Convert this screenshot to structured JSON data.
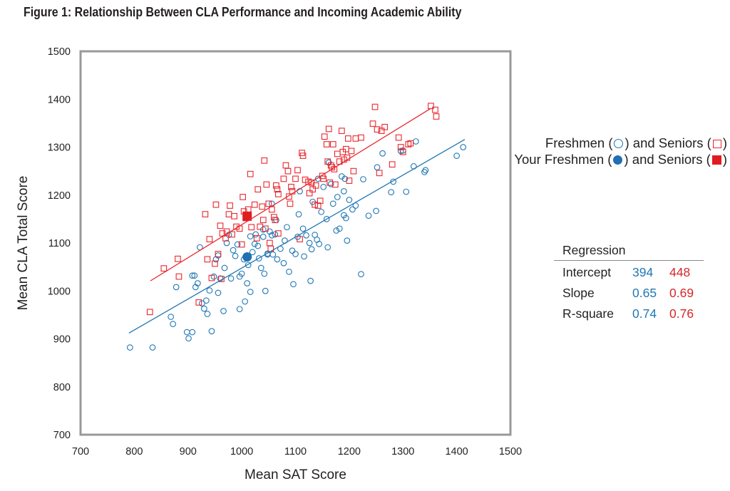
{
  "title": "Figure 1: Relationship Between CLA Performance and Incoming Academic Ability",
  "colors": {
    "freshmen": "#1f77b4",
    "seniors": "#e8282e",
    "frame": "#999999"
  },
  "legend": {
    "line1_text": "Freshmen (",
    "line1_mid": ") and Seniors (",
    "line1_end": ")",
    "line2_text": "Your Freshmen (",
    "line2_mid": ") and Seniors (",
    "line2_end": ")"
  },
  "regression": {
    "title": "Regression",
    "rows": [
      {
        "label": "Intercept",
        "freshmen": "394",
        "seniors": "448"
      },
      {
        "label": "Slope",
        "freshmen": "0.65",
        "seniors": "0.69"
      },
      {
        "label": "R-square",
        "freshmen": "0.74",
        "seniors": "0.76"
      }
    ]
  },
  "chart_data": {
    "type": "scatter",
    "title": "Figure 1: Relationship Between CLA Performance and Incoming Academic Ability",
    "xlabel": "Mean SAT Score",
    "ylabel": "Mean CLA Total Score",
    "xlim": [
      700,
      1500
    ],
    "ylim": [
      700,
      1500
    ],
    "xticks": [
      700,
      800,
      900,
      1000,
      1100,
      1200,
      1300,
      1400,
      1500
    ],
    "yticks": [
      700,
      800,
      900,
      1000,
      1100,
      1200,
      1300,
      1400,
      1500
    ],
    "grid": false,
    "legend_position": "right",
    "series": [
      {
        "name": "Freshmen",
        "marker": "open-circle",
        "regression_line": {
          "x": [
            790,
            1415
          ],
          "y": [
            912,
            1316
          ]
        },
        "points": [
          [
            792,
            882
          ],
          [
            834,
            882
          ],
          [
            868,
            946
          ],
          [
            872,
            931
          ],
          [
            898,
            914
          ],
          [
            901,
            901
          ],
          [
            908,
            914
          ],
          [
            878,
            1008
          ],
          [
            908,
            1032
          ],
          [
            912,
            1032
          ],
          [
            918,
            1016
          ],
          [
            914,
            1008
          ],
          [
            922,
            1091
          ],
          [
            926,
            974
          ],
          [
            930,
            963
          ],
          [
            934,
            980
          ],
          [
            936,
            952
          ],
          [
            940,
            1001
          ],
          [
            944,
            916
          ],
          [
            948,
            1030
          ],
          [
            952,
            1066
          ],
          [
            956,
            1074
          ],
          [
            956,
            996
          ],
          [
            960,
            1026
          ],
          [
            966,
            958
          ],
          [
            968,
            1048
          ],
          [
            972,
            1100
          ],
          [
            976,
            1117
          ],
          [
            980,
            1026
          ],
          [
            984,
            1085
          ],
          [
            988,
            1073
          ],
          [
            992,
            1097
          ],
          [
            996,
            962
          ],
          [
            996,
            1030
          ],
          [
            1000,
            1036
          ],
          [
            1004,
            1066
          ],
          [
            1006,
            978
          ],
          [
            1010,
            1016
          ],
          [
            1012,
            1054
          ],
          [
            1016,
            1114
          ],
          [
            1016,
            998
          ],
          [
            1020,
            1081
          ],
          [
            1024,
            1098
          ],
          [
            1026,
            1118
          ],
          [
            1030,
            1094
          ],
          [
            1032,
            1068
          ],
          [
            1036,
            1048
          ],
          [
            1040,
            1113
          ],
          [
            1042,
            1036
          ],
          [
            1044,
            1000
          ],
          [
            1048,
            1076
          ],
          [
            1048,
            1078
          ],
          [
            1052,
            1124
          ],
          [
            1056,
            1116
          ],
          [
            1058,
            1076
          ],
          [
            1062,
            1118
          ],
          [
            1064,
            1148
          ],
          [
            1066,
            1066
          ],
          [
            1072,
            1088
          ],
          [
            1078,
            1058
          ],
          [
            1080,
            1105
          ],
          [
            1084,
            1133
          ],
          [
            1088,
            1040
          ],
          [
            1094,
            1084
          ],
          [
            1096,
            1014
          ],
          [
            1100,
            1077
          ],
          [
            1104,
            1113
          ],
          [
            1108,
            1208
          ],
          [
            1114,
            1130
          ],
          [
            1116,
            1072
          ],
          [
            1120,
            1116
          ],
          [
            1126,
            1100
          ],
          [
            1128,
            1021
          ],
          [
            1130,
            1087
          ],
          [
            1132,
            1186
          ],
          [
            1136,
            1117
          ],
          [
            1140,
            1107
          ],
          [
            1144,
            1098
          ],
          [
            1148,
            1165
          ],
          [
            1152,
            1217
          ],
          [
            1158,
            1150
          ],
          [
            1160,
            1091
          ],
          [
            1162,
            1268
          ],
          [
            1166,
            1223
          ],
          [
            1170,
            1182
          ],
          [
            1176,
            1126
          ],
          [
            1178,
            1196
          ],
          [
            1182,
            1130
          ],
          [
            1186,
            1239
          ],
          [
            1190,
            1158
          ],
          [
            1192,
            1234
          ],
          [
            1194,
            1152
          ],
          [
            1196,
            1105
          ],
          [
            1200,
            1190
          ],
          [
            1206,
            1170
          ],
          [
            1212,
            1178
          ],
          [
            1222,
            1035
          ],
          [
            1226,
            1233
          ],
          [
            1236,
            1157
          ],
          [
            1250,
            1167
          ],
          [
            1252,
            1258
          ],
          [
            1262,
            1287
          ],
          [
            1278,
            1206
          ],
          [
            1282,
            1228
          ],
          [
            1296,
            1292
          ],
          [
            1300,
            1293
          ],
          [
            1306,
            1207
          ],
          [
            1320,
            1260
          ],
          [
            1324,
            1312
          ],
          [
            1340,
            1248
          ],
          [
            1342,
            1252
          ],
          [
            1400,
            1282
          ],
          [
            1412,
            1300
          ],
          [
            1190,
            1208
          ],
          [
            1040,
            1128
          ],
          [
            1056,
            1182
          ],
          [
            1106,
            1160
          ],
          [
            1142,
            1234
          ]
        ]
      },
      {
        "name": "Seniors",
        "marker": "open-square",
        "regression_line": {
          "x": [
            830,
            1352
          ],
          "y": [
            1021,
            1381
          ]
        },
        "points": [
          [
            829,
            956
          ],
          [
            855,
            1047
          ],
          [
            881,
            1067
          ],
          [
            883,
            1030
          ],
          [
            920,
            976
          ],
          [
            932,
            1160
          ],
          [
            936,
            1066
          ],
          [
            940,
            1108
          ],
          [
            944,
            1027
          ],
          [
            950,
            1057
          ],
          [
            952,
            1180
          ],
          [
            956,
            1077
          ],
          [
            960,
            1136
          ],
          [
            962,
            1025
          ],
          [
            964,
            1120
          ],
          [
            970,
            1110
          ],
          [
            972,
            1124
          ],
          [
            976,
            1160
          ],
          [
            978,
            1178
          ],
          [
            982,
            1118
          ],
          [
            986,
            1156
          ],
          [
            990,
            1134
          ],
          [
            996,
            1130
          ],
          [
            1000,
            1097
          ],
          [
            1002,
            1196
          ],
          [
            1004,
            1166
          ],
          [
            1008,
            1152
          ],
          [
            1012,
            1170
          ],
          [
            1016,
            1244
          ],
          [
            1018,
            1133
          ],
          [
            1024,
            1180
          ],
          [
            1028,
            1110
          ],
          [
            1030,
            1212
          ],
          [
            1034,
            1134
          ],
          [
            1038,
            1176
          ],
          [
            1040,
            1148
          ],
          [
            1042,
            1272
          ],
          [
            1044,
            1130
          ],
          [
            1046,
            1222
          ],
          [
            1050,
            1182
          ],
          [
            1052,
            1100
          ],
          [
            1054,
            1088
          ],
          [
            1056,
            1170
          ],
          [
            1060,
            1154
          ],
          [
            1062,
            1148
          ],
          [
            1064,
            1220
          ],
          [
            1066,
            1212
          ],
          [
            1068,
            1202
          ],
          [
            1068,
            1120
          ],
          [
            1078,
            1234
          ],
          [
            1082,
            1262
          ],
          [
            1086,
            1250
          ],
          [
            1088,
            1197
          ],
          [
            1090,
            1182
          ],
          [
            1092,
            1217
          ],
          [
            1094,
            1208
          ],
          [
            1100,
            1234
          ],
          [
            1104,
            1252
          ],
          [
            1108,
            1108
          ],
          [
            1112,
            1288
          ],
          [
            1114,
            1282
          ],
          [
            1118,
            1232
          ],
          [
            1124,
            1228
          ],
          [
            1126,
            1204
          ],
          [
            1130,
            1226
          ],
          [
            1132,
            1212
          ],
          [
            1136,
            1180
          ],
          [
            1138,
            1220
          ],
          [
            1142,
            1178
          ],
          [
            1146,
            1188
          ],
          [
            1150,
            1240
          ],
          [
            1152,
            1234
          ],
          [
            1154,
            1322
          ],
          [
            1158,
            1306
          ],
          [
            1160,
            1270
          ],
          [
            1162,
            1338
          ],
          [
            1164,
            1226
          ],
          [
            1166,
            1262
          ],
          [
            1168,
            1258
          ],
          [
            1170,
            1306
          ],
          [
            1172,
            1254
          ],
          [
            1174,
            1222
          ],
          [
            1178,
            1286
          ],
          [
            1182,
            1270
          ],
          [
            1186,
            1334
          ],
          [
            1188,
            1290
          ],
          [
            1190,
            1274
          ],
          [
            1194,
            1296
          ],
          [
            1196,
            1278
          ],
          [
            1198,
            1318
          ],
          [
            1200,
            1230
          ],
          [
            1204,
            1292
          ],
          [
            1208,
            1250
          ],
          [
            1212,
            1318
          ],
          [
            1222,
            1320
          ],
          [
            1244,
            1349
          ],
          [
            1248,
            1384
          ],
          [
            1252,
            1337
          ],
          [
            1256,
            1246
          ],
          [
            1260,
            1334
          ],
          [
            1266,
            1342
          ],
          [
            1280,
            1264
          ],
          [
            1292,
            1320
          ],
          [
            1296,
            1300
          ],
          [
            1300,
            1290
          ],
          [
            1310,
            1306
          ],
          [
            1314,
            1308
          ],
          [
            1352,
            1386
          ],
          [
            1362,
            1364
          ],
          [
            1360,
            1378
          ]
        ]
      },
      {
        "name": "Your Freshmen",
        "marker": "filled-circle",
        "points": [
          [
            1010,
            1071
          ]
        ]
      },
      {
        "name": "Your Seniors",
        "marker": "filled-square",
        "points": [
          [
            1010,
            1156
          ]
        ]
      }
    ]
  }
}
